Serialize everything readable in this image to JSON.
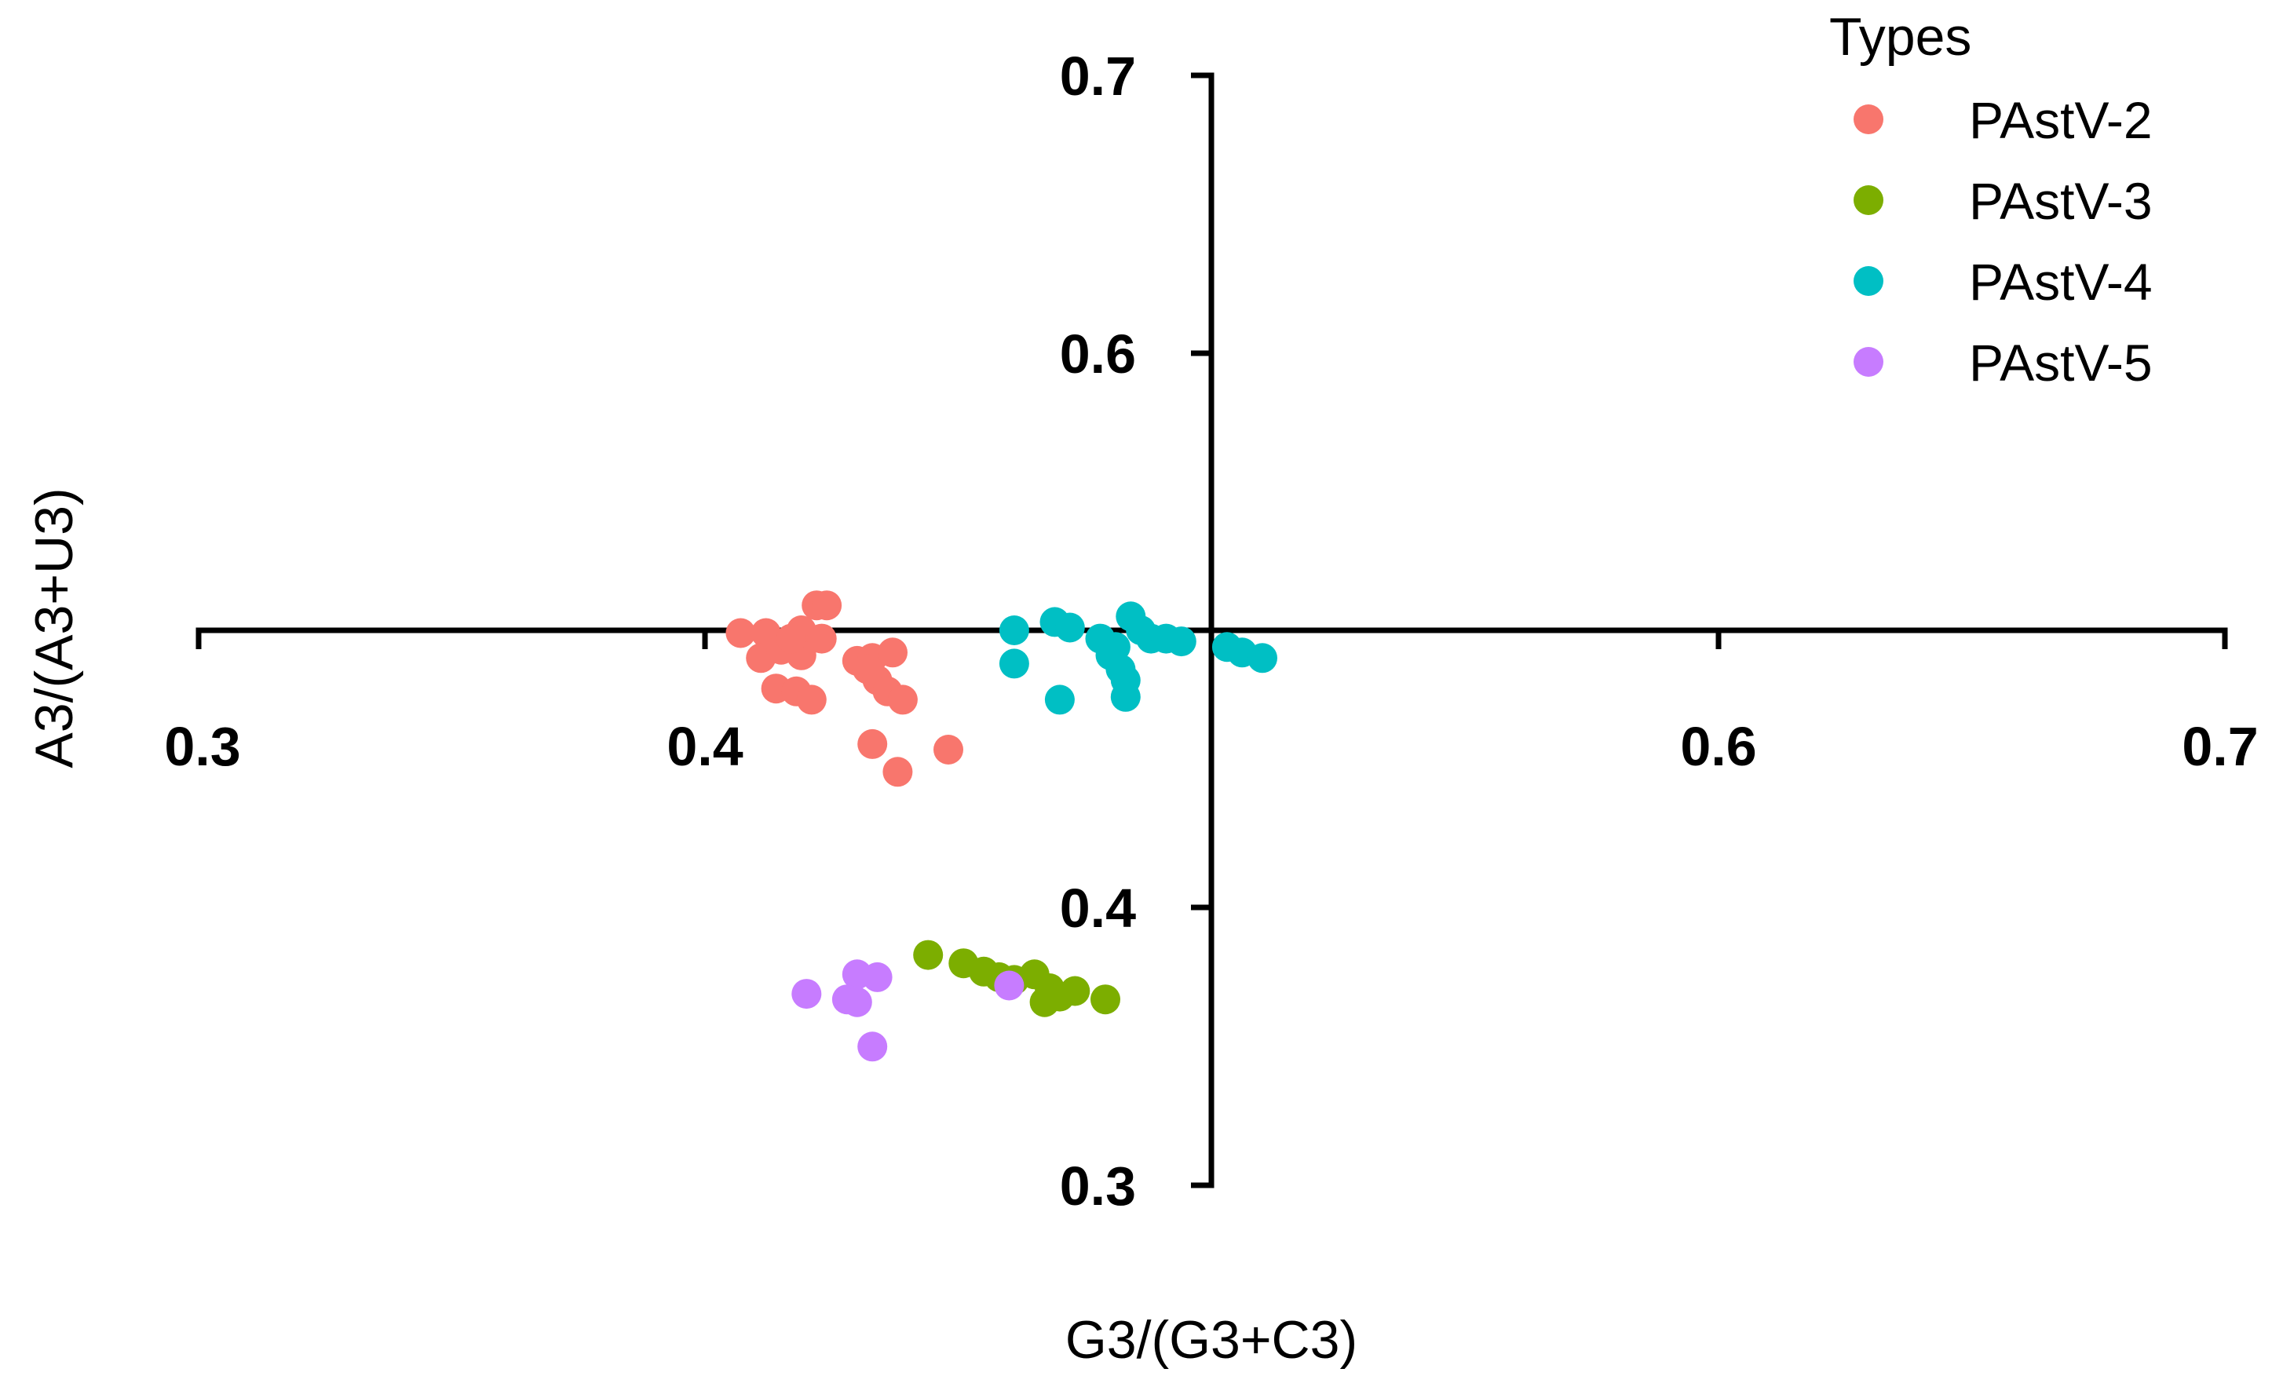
{
  "chart_data": {
    "type": "scatter",
    "title": "",
    "xlabel": "G3/(G3+C3)",
    "ylabel": "A3/(A3+U3)",
    "xlim": [
      0.3,
      0.7
    ],
    "ylim": [
      0.3,
      0.7
    ],
    "x_ticks": [
      "0.3",
      "0.4",
      "0.6",
      "0.7"
    ],
    "y_ticks": [
      "0.7",
      "0.6",
      "0.4",
      "0.3"
    ],
    "grid": false,
    "legend": {
      "title": "Types",
      "position": "top-right"
    },
    "series": [
      {
        "name": "PAstV-2",
        "color": "#F8766D",
        "points": [
          [
            0.422,
            0.509
          ],
          [
            0.424,
            0.509
          ],
          [
            0.407,
            0.499
          ],
          [
            0.412,
            0.499
          ],
          [
            0.419,
            0.5
          ],
          [
            0.423,
            0.497
          ],
          [
            0.411,
            0.49
          ],
          [
            0.415,
            0.493
          ],
          [
            0.419,
            0.491
          ],
          [
            0.417,
            0.497
          ],
          [
            0.43,
            0.489
          ],
          [
            0.433,
            0.49
          ],
          [
            0.437,
            0.492
          ],
          [
            0.432,
            0.486
          ],
          [
            0.434,
            0.482
          ],
          [
            0.436,
            0.478
          ],
          [
            0.439,
            0.475
          ],
          [
            0.414,
            0.479
          ],
          [
            0.418,
            0.478
          ],
          [
            0.421,
            0.475
          ],
          [
            0.433,
            0.459
          ],
          [
            0.448,
            0.457
          ],
          [
            0.438,
            0.449
          ]
        ]
      },
      {
        "name": "PAstV-3",
        "color": "#7CAE00",
        "points": [
          [
            0.444,
            0.383
          ],
          [
            0.451,
            0.38
          ],
          [
            0.455,
            0.377
          ],
          [
            0.458,
            0.375
          ],
          [
            0.461,
            0.374
          ],
          [
            0.465,
            0.376
          ],
          [
            0.468,
            0.371
          ],
          [
            0.47,
            0.368
          ],
          [
            0.473,
            0.37
          ],
          [
            0.479,
            0.367
          ],
          [
            0.467,
            0.366
          ]
        ]
      },
      {
        "name": "PAstV-4",
        "color": "#00BFC4",
        "points": [
          [
            0.461,
            0.5
          ],
          [
            0.469,
            0.503
          ],
          [
            0.472,
            0.501
          ],
          [
            0.478,
            0.497
          ],
          [
            0.481,
            0.494
          ],
          [
            0.484,
            0.505
          ],
          [
            0.486,
            0.5
          ],
          [
            0.488,
            0.497
          ],
          [
            0.491,
            0.497
          ],
          [
            0.494,
            0.496
          ],
          [
            0.503,
            0.494
          ],
          [
            0.506,
            0.492
          ],
          [
            0.51,
            0.49
          ],
          [
            0.461,
            0.488
          ],
          [
            0.48,
            0.491
          ],
          [
            0.482,
            0.486
          ],
          [
            0.483,
            0.482
          ],
          [
            0.47,
            0.475
          ],
          [
            0.483,
            0.476
          ]
        ]
      },
      {
        "name": "PAstV-5",
        "color": "#C77CFF",
        "points": [
          [
            0.43,
            0.376
          ],
          [
            0.434,
            0.375
          ],
          [
            0.42,
            0.369
          ],
          [
            0.428,
            0.367
          ],
          [
            0.43,
            0.366
          ],
          [
            0.433,
            0.35
          ],
          [
            0.46,
            0.372
          ]
        ]
      }
    ]
  }
}
